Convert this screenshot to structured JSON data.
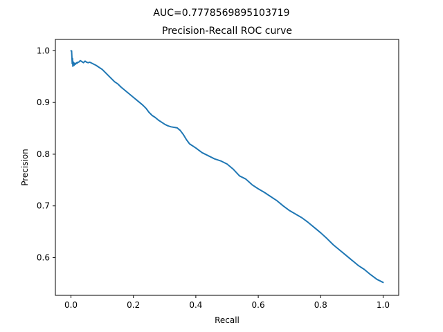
{
  "chart_data": {
    "type": "line",
    "suptitle": "AUC=0.7778569895103719",
    "title": "Precision-Recall ROC curve",
    "xlabel": "Recall",
    "ylabel": "Precision",
    "xlim": [
      -0.05,
      1.05
    ],
    "ylim": [
      0.527,
      1.022
    ],
    "xticks": [
      "0.0",
      "0.2",
      "0.4",
      "0.6",
      "0.8",
      "1.0"
    ],
    "yticks": [
      "0.6",
      "0.7",
      "0.8",
      "0.9",
      "1.0"
    ],
    "grid": false,
    "series": [
      {
        "color": "#1f77b4",
        "x": [
          0.0,
          0.002,
          0.004,
          0.005,
          0.006,
          0.008,
          0.01,
          0.012,
          0.014,
          0.016,
          0.018,
          0.02,
          0.022,
          0.025,
          0.028,
          0.03,
          0.035,
          0.04,
          0.045,
          0.05,
          0.055,
          0.06,
          0.07,
          0.08,
          0.09,
          0.1,
          0.11,
          0.12,
          0.13,
          0.14,
          0.15,
          0.16,
          0.17,
          0.18,
          0.19,
          0.2,
          0.21,
          0.22,
          0.23,
          0.24,
          0.25,
          0.26,
          0.27,
          0.28,
          0.29,
          0.3,
          0.31,
          0.32,
          0.33,
          0.34,
          0.35,
          0.36,
          0.37,
          0.38,
          0.4,
          0.42,
          0.44,
          0.46,
          0.48,
          0.5,
          0.52,
          0.54,
          0.56,
          0.58,
          0.6,
          0.62,
          0.64,
          0.66,
          0.68,
          0.7,
          0.72,
          0.74,
          0.76,
          0.78,
          0.8,
          0.82,
          0.84,
          0.86,
          0.88,
          0.9,
          0.92,
          0.94,
          0.96,
          0.98,
          1.0
        ],
        "y": [
          1.0,
          1.0,
          0.975,
          0.985,
          0.97,
          0.978,
          0.972,
          0.976,
          0.974,
          0.975,
          0.977,
          0.976,
          0.978,
          0.978,
          0.98,
          0.981,
          0.979,
          0.977,
          0.98,
          0.978,
          0.977,
          0.978,
          0.975,
          0.972,
          0.968,
          0.964,
          0.958,
          0.952,
          0.946,
          0.94,
          0.936,
          0.93,
          0.925,
          0.92,
          0.915,
          0.91,
          0.905,
          0.9,
          0.895,
          0.889,
          0.881,
          0.875,
          0.871,
          0.866,
          0.862,
          0.858,
          0.855,
          0.853,
          0.852,
          0.851,
          0.846,
          0.838,
          0.828,
          0.82,
          0.812,
          0.803,
          0.797,
          0.791,
          0.787,
          0.781,
          0.771,
          0.758,
          0.752,
          0.741,
          0.733,
          0.726,
          0.718,
          0.71,
          0.7,
          0.691,
          0.684,
          0.677,
          0.668,
          0.658,
          0.648,
          0.637,
          0.625,
          0.615,
          0.605,
          0.595,
          0.585,
          0.577,
          0.567,
          0.558,
          0.552
        ]
      }
    ]
  }
}
